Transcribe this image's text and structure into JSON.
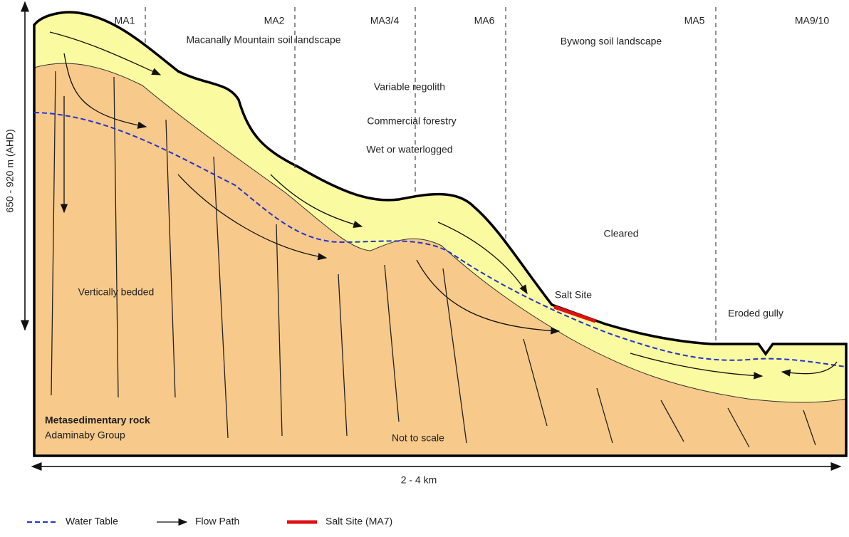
{
  "zones": [
    "MA1",
    "MA2",
    "MA3/4",
    "MA6",
    "MA5",
    "MA9/10"
  ],
  "landscapes": [
    "Macanally Mountain soil landscape",
    "Bywong soil landscape"
  ],
  "attributes": [
    "Variable regolith",
    "Commercial forestry",
    "Wet or waterlogged",
    "Cleared"
  ],
  "annotations": {
    "salt_site": "Salt Site",
    "eroded_gully": "Eroded gully",
    "vertically_bedded": "Vertically bedded",
    "rock": "Metasedimentary rock",
    "group": "Adaminaby Group",
    "scale": "Not to scale"
  },
  "axes": {
    "vertical": "650 - 920 m (AHD)",
    "horizontal": "2 - 4 km"
  },
  "legend": [
    "Water Table",
    "Flow Path",
    "Salt Site (MA7)"
  ]
}
